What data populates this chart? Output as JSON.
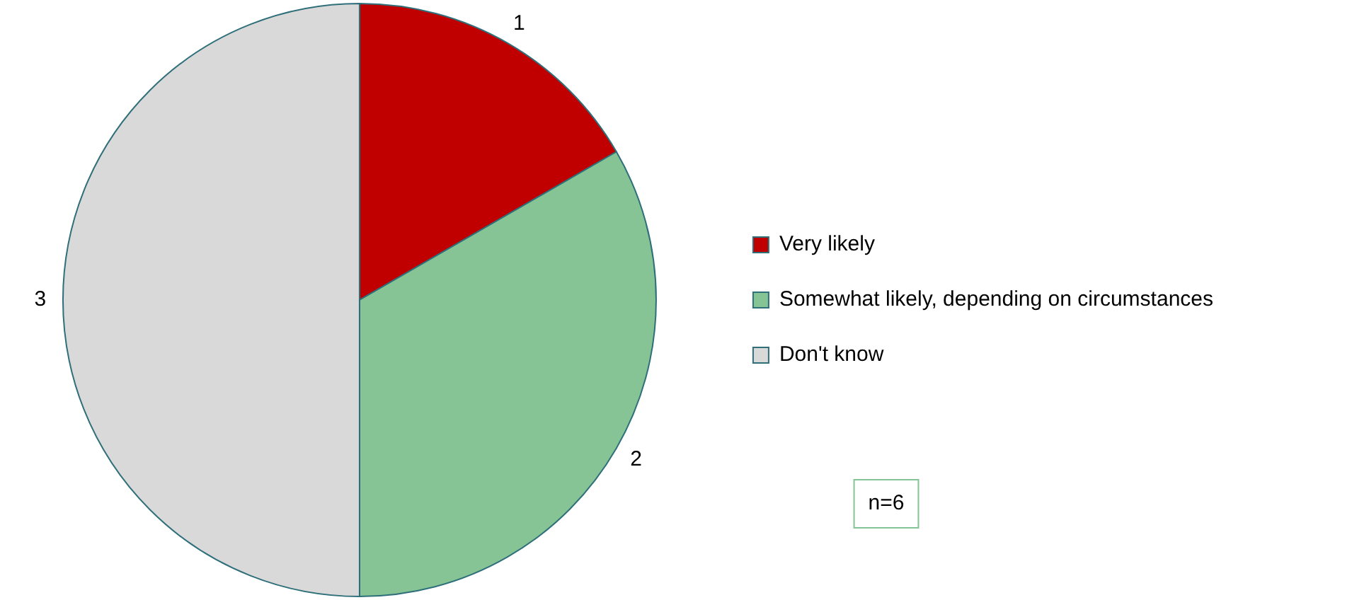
{
  "chart_data": {
    "type": "pie",
    "categories": [
      "Very likely",
      "Somewhat likely, depending on circumstances",
      "Don't know"
    ],
    "values": [
      1,
      2,
      3
    ],
    "colors": [
      "#c00000",
      "#86c495",
      "#d9d9d9"
    ],
    "data_labels": true,
    "legend": "right",
    "annotations": [
      "n=6"
    ]
  }
}
